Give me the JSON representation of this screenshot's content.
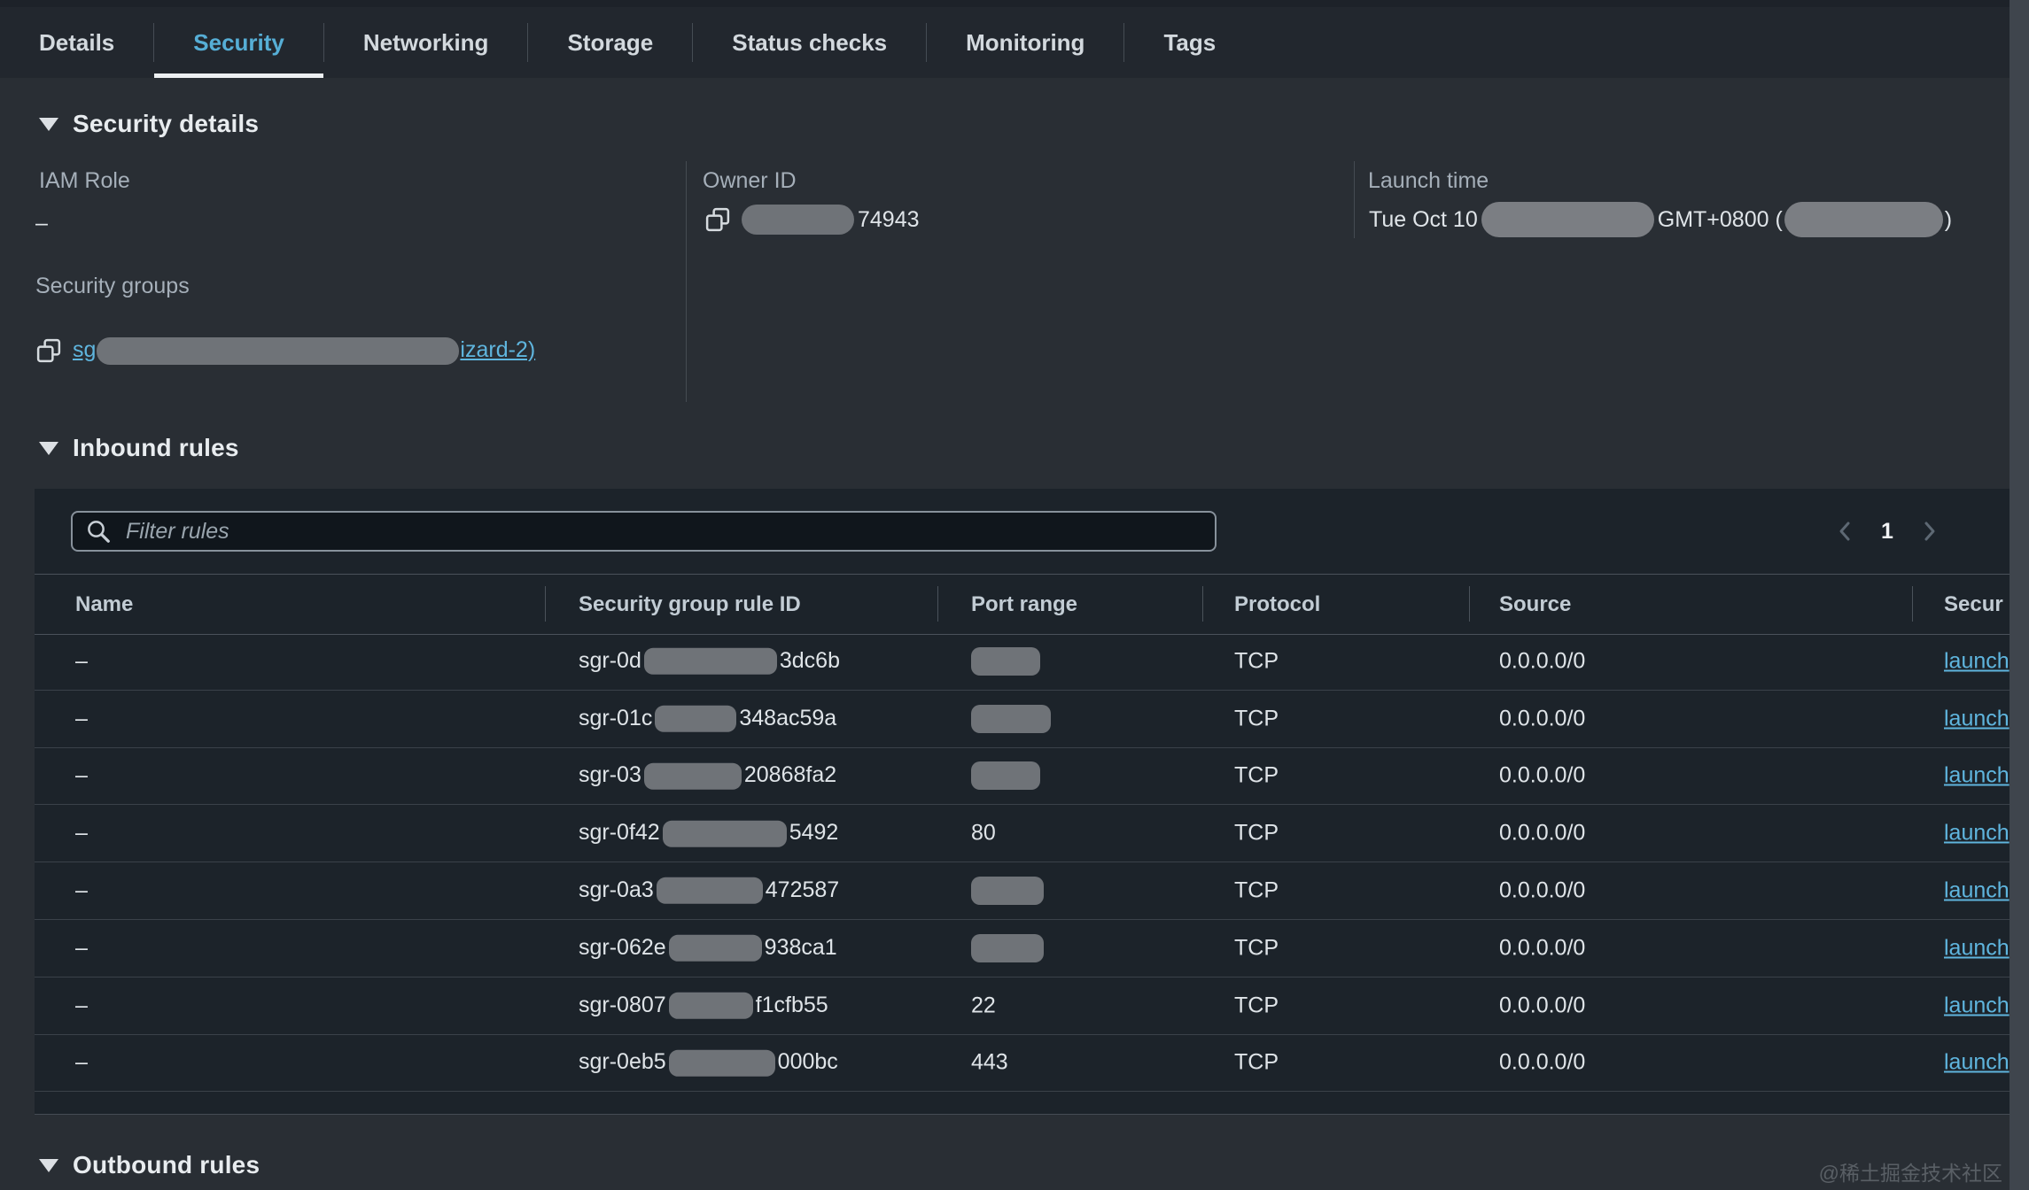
{
  "tabs": {
    "items": [
      {
        "label": "Details",
        "active": false
      },
      {
        "label": "Security",
        "active": true
      },
      {
        "label": "Networking",
        "active": false
      },
      {
        "label": "Storage",
        "active": false
      },
      {
        "label": "Status checks",
        "active": false
      },
      {
        "label": "Monitoring",
        "active": false
      },
      {
        "label": "Tags",
        "active": false
      }
    ]
  },
  "security_details": {
    "title": "Security details",
    "iam_role": {
      "label": "IAM Role",
      "value": "–"
    },
    "security_groups": {
      "label": "Security groups",
      "link_prefix": "sg",
      "link_suffix": "izard-2)"
    },
    "owner_id": {
      "label": "Owner ID",
      "visible_value": "74943"
    },
    "launch_time": {
      "label": "Launch time",
      "prefix": "Tue Oct 10",
      "middle": "GMT+0800 (",
      "suffix": ")"
    }
  },
  "inbound_rules": {
    "title": "Inbound rules",
    "filter_placeholder": "Filter rules",
    "pagination": {
      "current_page": "1"
    },
    "columns": [
      "Name",
      "Security group rule ID",
      "Port range",
      "Protocol",
      "Source",
      "Secur"
    ],
    "rows": [
      {
        "name": "–",
        "sgr_prefix": "sgr-0d",
        "sgr_suffix": "3dc6b",
        "sgr_pill_w": 150,
        "port": "",
        "port_pill_w": 78,
        "protocol": "TCP",
        "source": "0.0.0.0/0",
        "link": "launch"
      },
      {
        "name": "–",
        "sgr_prefix": "sgr-01c",
        "sgr_suffix": "348ac59a",
        "sgr_pill_w": 92,
        "port": "",
        "port_pill_w": 90,
        "protocol": "TCP",
        "source": "0.0.0.0/0",
        "link": "launch"
      },
      {
        "name": "–",
        "sgr_prefix": "sgr-03",
        "sgr_suffix": "20868fa2",
        "sgr_pill_w": 110,
        "port": "",
        "port_pill_w": 78,
        "protocol": "TCP",
        "source": "0.0.0.0/0",
        "link": "launch"
      },
      {
        "name": "–",
        "sgr_prefix": "sgr-0f42",
        "sgr_suffix": "5492",
        "sgr_pill_w": 140,
        "port": "80",
        "port_pill_w": null,
        "protocol": "TCP",
        "source": "0.0.0.0/0",
        "link": "launch"
      },
      {
        "name": "–",
        "sgr_prefix": "sgr-0a3",
        "sgr_suffix": "472587",
        "sgr_pill_w": 120,
        "port": "",
        "port_pill_w": 82,
        "protocol": "TCP",
        "source": "0.0.0.0/0",
        "link": "launch"
      },
      {
        "name": "–",
        "sgr_prefix": "sgr-062e",
        "sgr_suffix": "938ca1",
        "sgr_pill_w": 105,
        "port": "",
        "port_pill_w": 82,
        "protocol": "TCP",
        "source": "0.0.0.0/0",
        "link": "launch"
      },
      {
        "name": "–",
        "sgr_prefix": "sgr-0807",
        "sgr_suffix": "f1cfb55",
        "sgr_pill_w": 95,
        "port": "22",
        "port_pill_w": null,
        "protocol": "TCP",
        "source": "0.0.0.0/0",
        "link": "launch"
      },
      {
        "name": "–",
        "sgr_prefix": "sgr-0eb5",
        "sgr_suffix": "000bc",
        "sgr_pill_w": 120,
        "port": "443",
        "port_pill_w": null,
        "protocol": "TCP",
        "source": "0.0.0.0/0",
        "link": "launch"
      }
    ]
  },
  "outbound_rules": {
    "title": "Outbound rules"
  },
  "watermark": "@稀土掘金技术社区",
  "colors": {
    "accent_blue": "#56aed6",
    "active_tab_underline": "#edf0f2",
    "link_blue": "#5fb5de",
    "page_bg": "#292e34",
    "panel_bg": "#1c232a",
    "redaction_pill": "#6f7378"
  }
}
